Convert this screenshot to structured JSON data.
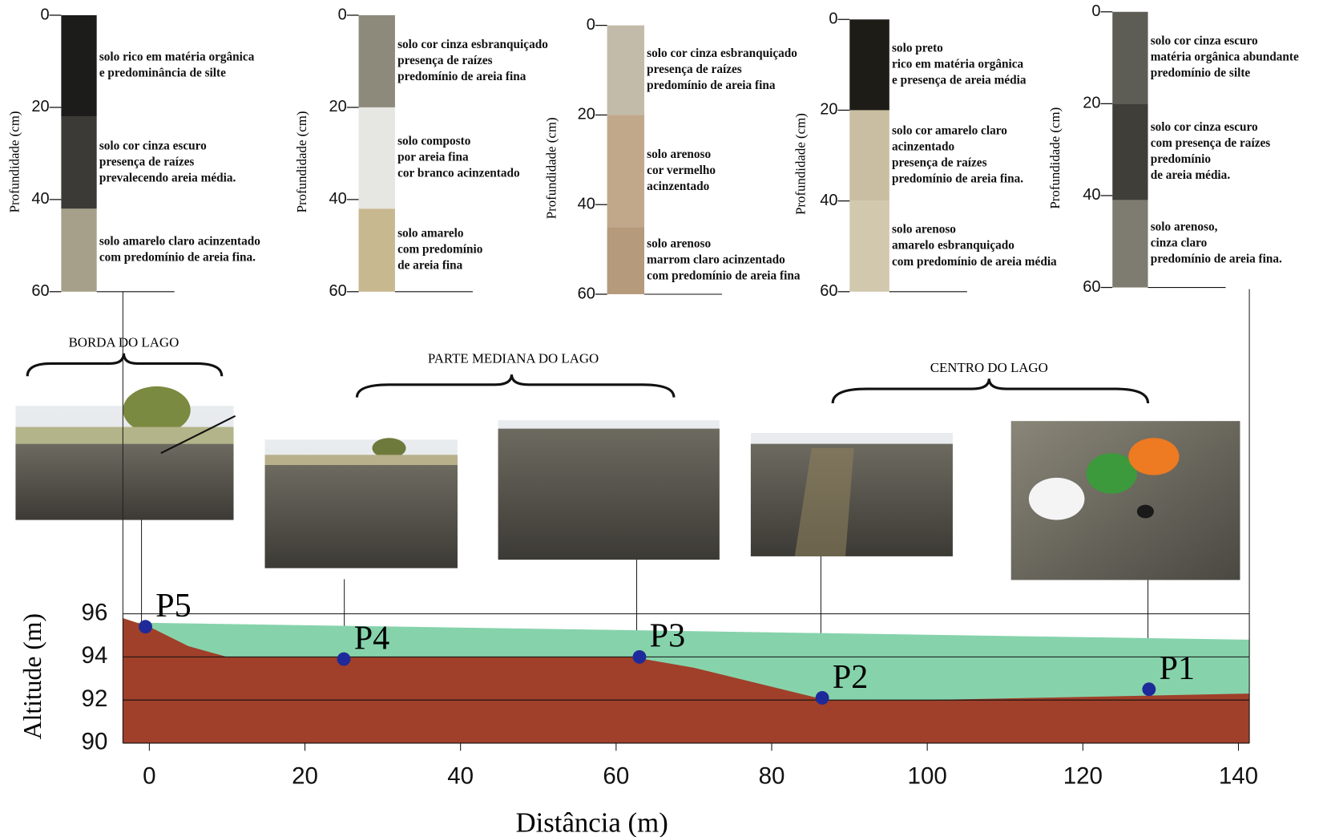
{
  "chart_data": [
    {
      "type": "soil-profile",
      "ylabel": "Profundidade (cm)",
      "ylim": [
        0,
        60
      ],
      "yticks": [
        0,
        20,
        40,
        60
      ],
      "layers": [
        {
          "text": [
            "solo  rico em matéria orgânica",
            "e predominância de silte"
          ],
          "top": 0,
          "bottom": 22,
          "color": "#1c1c1a"
        },
        {
          "text": [
            "solo  cor cinza escuro",
            "presença de raízes",
            "prevalecendo areia média."
          ],
          "top": 22,
          "bottom": 42,
          "color": "#3b3a37"
        },
        {
          "text": [
            "solo   amarelo claro acinzentado",
            "com predomínio de areia fina."
          ],
          "top": 42,
          "bottom": 60,
          "color": "#a6a08a"
        }
      ]
    },
    {
      "type": "soil-profile",
      "ylabel": "Profundidade (cm)",
      "ylim": [
        0,
        60
      ],
      "yticks": [
        0,
        20,
        40,
        60
      ],
      "layers": [
        {
          "text": [
            "solo cor cinza esbranquiçado",
            "presença de raízes",
            "predomínio de areia fina"
          ],
          "top": 0,
          "bottom": 20,
          "color": "#8d8a7c"
        },
        {
          "text": [
            "solo  composto",
            "por areia fina",
            "cor branco acinzentado"
          ],
          "top": 20,
          "bottom": 42,
          "color": "#e6e6e2"
        },
        {
          "text": [
            "solo   amarelo",
            "com predomínio",
            "de areia fina"
          ],
          "top": 42,
          "bottom": 60,
          "color": "#c8b88f"
        }
      ]
    },
    {
      "type": "soil-profile",
      "ylabel": "Profundidade (cm)",
      "ylim": [
        0,
        60
      ],
      "yticks": [
        0,
        20,
        40,
        60
      ],
      "layers": [
        {
          "text": [
            "solo cor cinza esbranquiçado",
            "presença de raízes",
            "predomínio de areia fina"
          ],
          "top": 0,
          "bottom": 20,
          "color": "#c3bba9"
        },
        {
          "text": [
            "solo   arenoso",
            "cor vermelho",
            "acinzentado"
          ],
          "top": 20,
          "bottom": 45,
          "color": "#c2a88a"
        },
        {
          "text": [
            "solo   arenoso",
            "marrom claro acinzentado",
            "com predomínio de areia fina"
          ],
          "top": 45,
          "bottom": 60,
          "color": "#b59a7c"
        }
      ]
    },
    {
      "type": "soil-profile",
      "ylabel": "Profundidade (cm)",
      "ylim": [
        0,
        60
      ],
      "yticks": [
        0,
        20,
        40,
        60
      ],
      "layers": [
        {
          "text": [
            "solo  preto",
            "rico em matéria orgânica",
            "e presença de areia média"
          ],
          "top": 0,
          "bottom": 20,
          "color": "#1e1c17"
        },
        {
          "text": [
            "solo  cor amarelo claro",
            " acinzentado",
            "presença de raízes",
            "predomínio de areia fina."
          ],
          "top": 20,
          "bottom": 40,
          "color": "#c9bea1"
        },
        {
          "text": [
            "solo  arenoso",
            "amarelo esbranquiçado",
            "com predomínio de areia média"
          ],
          "top": 40,
          "bottom": 60,
          "color": "#d2c8ae"
        }
      ]
    },
    {
      "type": "soil-profile",
      "ylabel": "Profundidade (cm)",
      "ylim": [
        0,
        60
      ],
      "yticks": [
        0,
        20,
        40,
        60
      ],
      "layers": [
        {
          "text": [
            "solo  cor cinza escuro",
            "matéria orgânica abundante",
            "predomínio de silte"
          ],
          "top": 0,
          "bottom": 20,
          "color": "#5e5d55"
        },
        {
          "text": [
            "solo  cor cinza escuro",
            "com presença de raízes",
            "predomínio",
            " de areia média."
          ],
          "top": 20,
          "bottom": 41,
          "color": "#3f3e39"
        },
        {
          "text": [
            "solo   arenoso,",
            "cinza claro",
            "predomínio de areia fina."
          ],
          "top": 41,
          "bottom": 60,
          "color": "#7e7b70"
        }
      ]
    },
    {
      "type": "area",
      "xlabel": "Distância (m)",
      "ylabel": "Altitude (m)",
      "xlim": [
        -3.4,
        141.4
      ],
      "ylim": [
        90,
        96
      ],
      "xticks": [
        0,
        20,
        40,
        60,
        80,
        100,
        120,
        140
      ],
      "yticks": [
        90,
        92,
        94,
        96
      ],
      "grid": true,
      "series": [
        {
          "name": "lâmina d'água",
          "color": "#86d3ab",
          "x": [
            -3.4,
            141.4
          ],
          "values": [
            95.6,
            94.8
          ]
        },
        {
          "name": "terreno",
          "color": "#a0402a",
          "x": [
            -3.4,
            0,
            5,
            10,
            62,
            70,
            87,
            100,
            141.4
          ],
          "values": [
            95.8,
            95.4,
            94.5,
            94,
            94,
            93.5,
            92,
            92,
            92.3
          ]
        }
      ],
      "points": [
        {
          "name": "P5",
          "x": -0.5,
          "y": 95.4
        },
        {
          "name": "P4",
          "x": 25,
          "y": 93.9
        },
        {
          "name": "P3",
          "x": 63,
          "y": 94
        },
        {
          "name": "P2",
          "x": 86.5,
          "y": 92.1
        },
        {
          "name": "P1",
          "x": 128.5,
          "y": 92.5
        }
      ],
      "point_color": "#1f2a9a",
      "zones": [
        "BORDA DO LAGO",
        "PARTE MEDIANA DO LAGO",
        "CENTRO DO LAGO"
      ]
    }
  ]
}
